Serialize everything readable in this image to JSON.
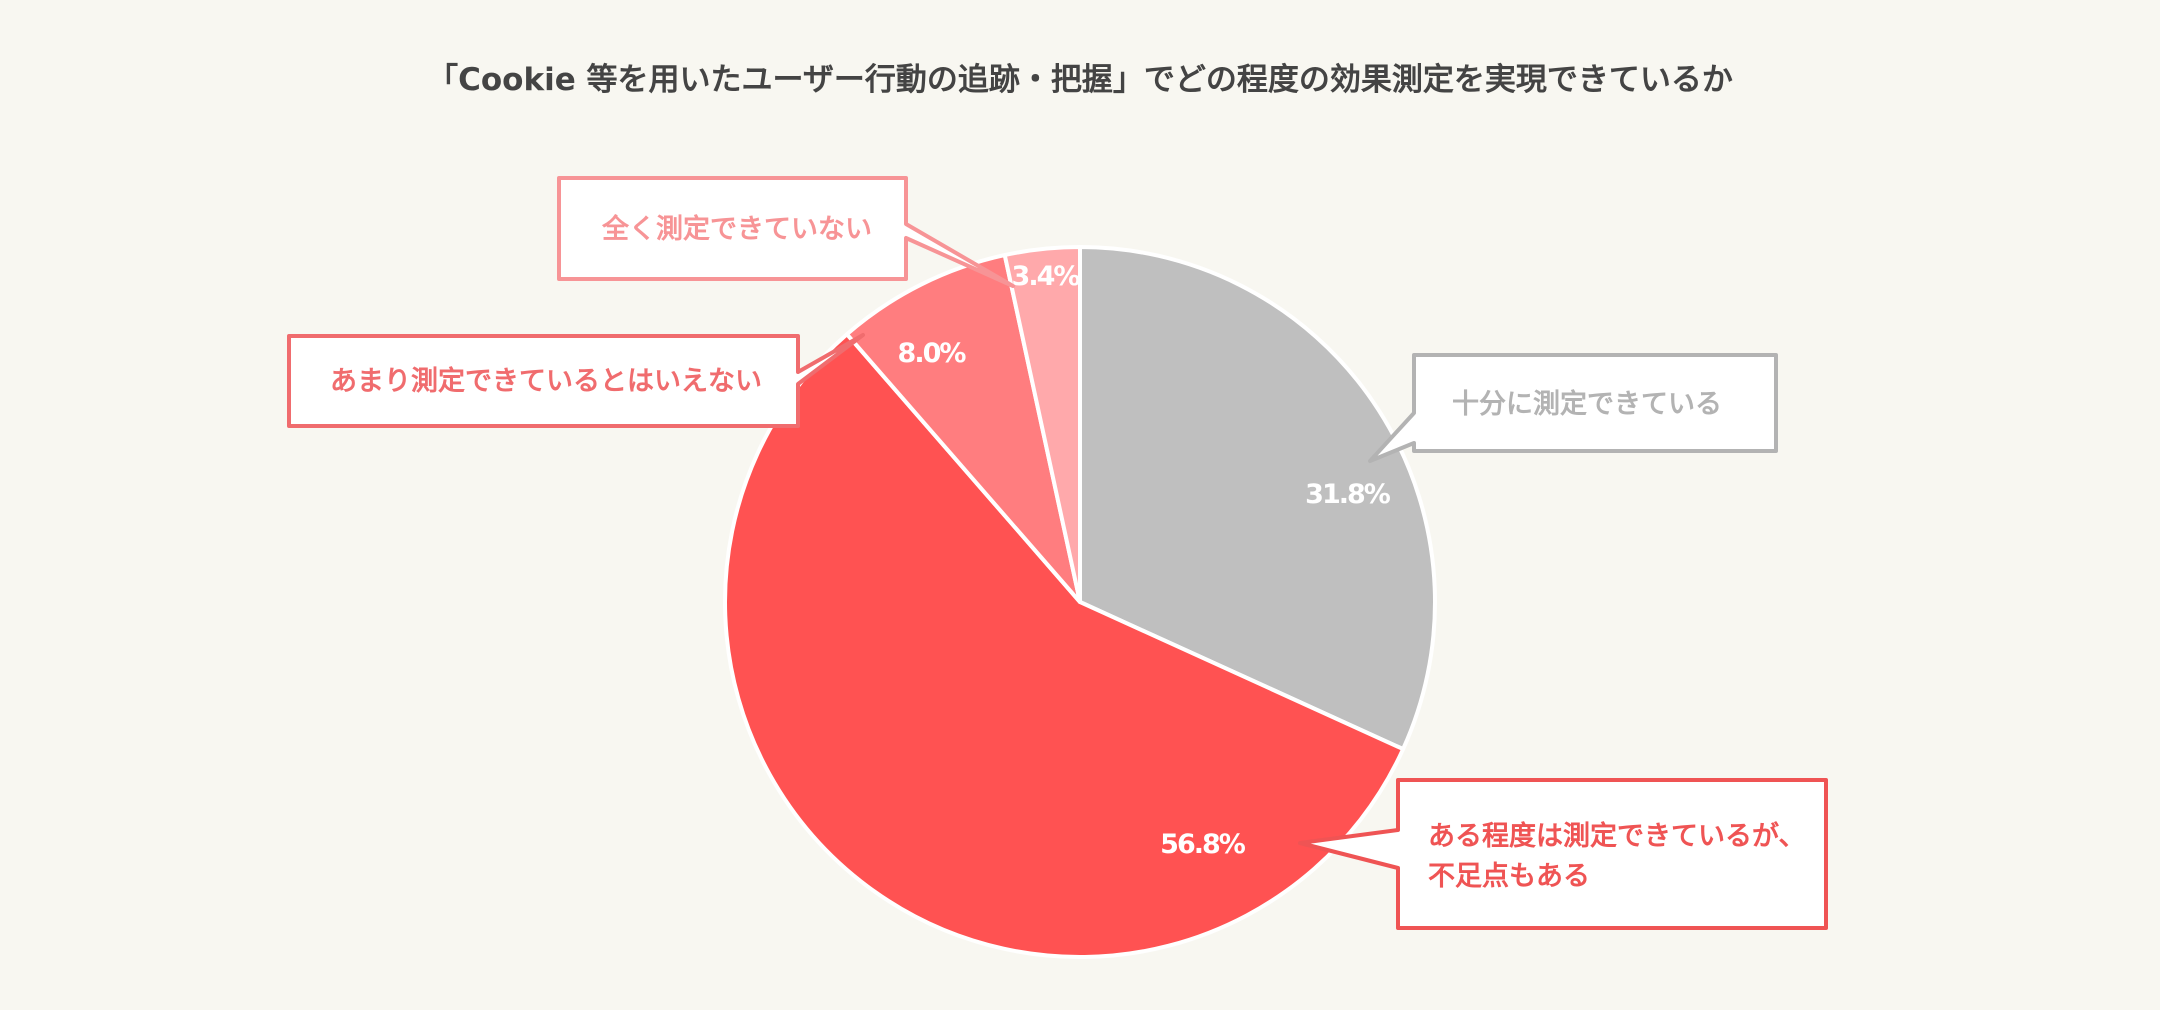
{
  "chart_data": {
    "type": "pie",
    "title": "「Cookie 等を用いたユーザー行動の追跡・把握」でどの程度の効果測定を実現できているか",
    "start": "top",
    "direction": "clockwise",
    "slices": [
      {
        "label": "十分に測定できている",
        "value": 31.8,
        "value_label": "31.8%",
        "color": "#bfbfbf",
        "label_color": "#b3b3b3"
      },
      {
        "label": "ある程度は測定できているが、不足点もある",
        "label_lines": [
          "ある程度は測定できているが、",
          "不足点もある"
        ],
        "value": 56.8,
        "value_label": "56.8%",
        "color": "#ff5252",
        "label_color": "#ef5454"
      },
      {
        "label": "あまり測定できているとはいえない",
        "value": 8.0,
        "value_label": "8.0%",
        "color": "#ff7d7f",
        "label_color": "#f06c6e"
      },
      {
        "label": "全く測定できていない",
        "value": 3.4,
        "value_label": "3.4%",
        "color": "#ffa9ab",
        "label_color": "#f79496"
      }
    ]
  }
}
